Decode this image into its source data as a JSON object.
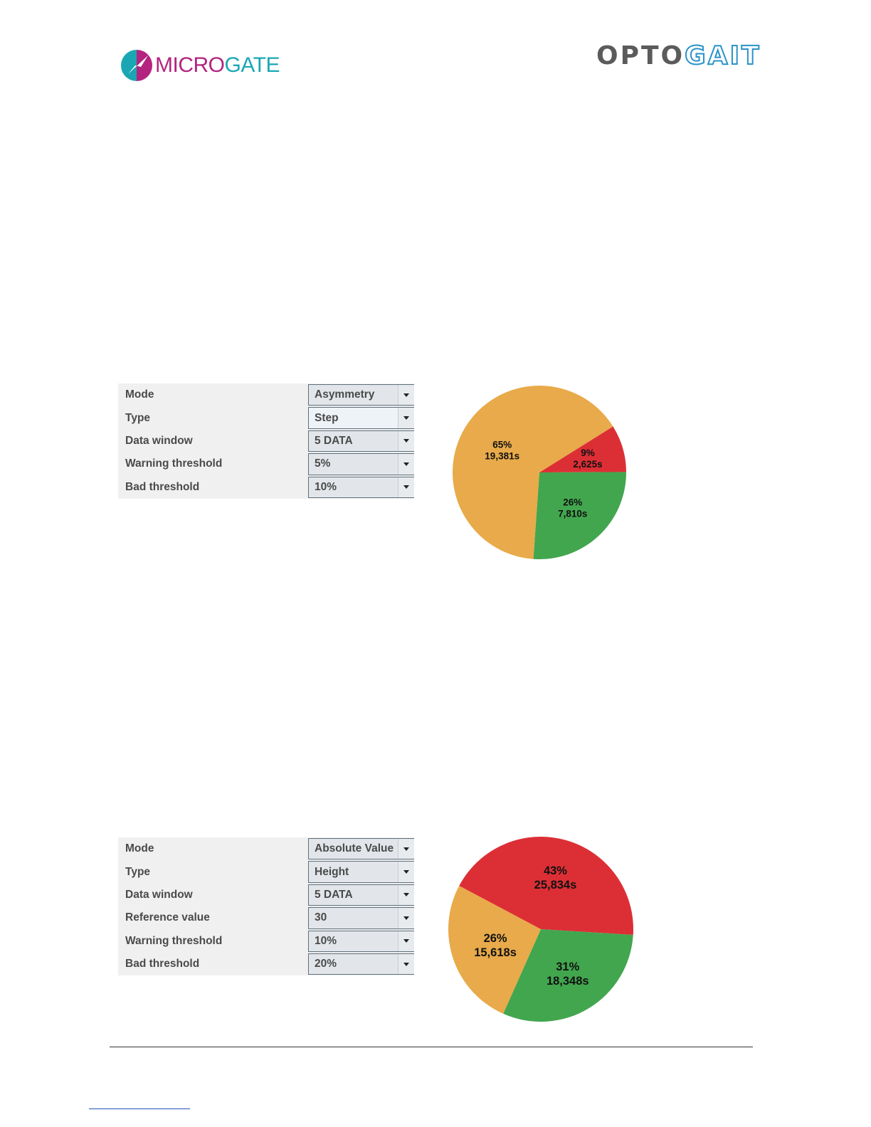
{
  "header": {
    "microgate_logo": {
      "part1": "MICRO",
      "part2": "GATE",
      "colors": {
        "magenta": "#b4237f",
        "teal": "#1aa7b3"
      }
    },
    "optogait_logo": {
      "part1": "OPTO",
      "part2": "GAIT",
      "colors": {
        "gray": "#5b5b5b",
        "blue": "#2a93c9"
      }
    }
  },
  "panel1": {
    "rows": [
      {
        "label": "Mode",
        "value": "Asymmetry"
      },
      {
        "label": "Type",
        "value": "Step"
      },
      {
        "label": "Data window",
        "value": "5 DATA"
      },
      {
        "label": "Warning threshold",
        "value": "5%"
      },
      {
        "label": "Bad threshold",
        "value": "10%"
      }
    ]
  },
  "panel2": {
    "rows": [
      {
        "label": "Mode",
        "value": "Absolute Value"
      },
      {
        "label": "Type",
        "value": "Height"
      },
      {
        "label": "Data window",
        "value": "5 DATA"
      },
      {
        "label": "Reference value",
        "value": "30"
      },
      {
        "label": "Warning threshold",
        "value": "10%"
      },
      {
        "label": "Bad threshold",
        "value": "20%"
      }
    ]
  },
  "colors": {
    "red": "#dc2f35",
    "green": "#42a64e",
    "orange": "#e8aa4a"
  },
  "chart_data": [
    {
      "type": "pie",
      "start_angle_deg": -32,
      "slices": [
        {
          "color": "red",
          "percent_label": "9%",
          "time_label": "2,625s",
          "value": 2.625
        },
        {
          "color": "green",
          "percent_label": "26%",
          "time_label": "7,810s",
          "value": 7.81
        },
        {
          "color": "orange",
          "percent_label": "65%",
          "time_label": "19,381s",
          "value": 19.381
        }
      ]
    },
    {
      "type": "pie",
      "start_angle_deg": -152,
      "slices": [
        {
          "color": "red",
          "percent_label": "43%",
          "time_label": "25,834s",
          "value": 25.834
        },
        {
          "color": "green",
          "percent_label": "31%",
          "time_label": "18,348s",
          "value": 18.348
        },
        {
          "color": "orange",
          "percent_label": "26%",
          "time_label": "15,618s",
          "value": 15.618
        }
      ]
    }
  ]
}
